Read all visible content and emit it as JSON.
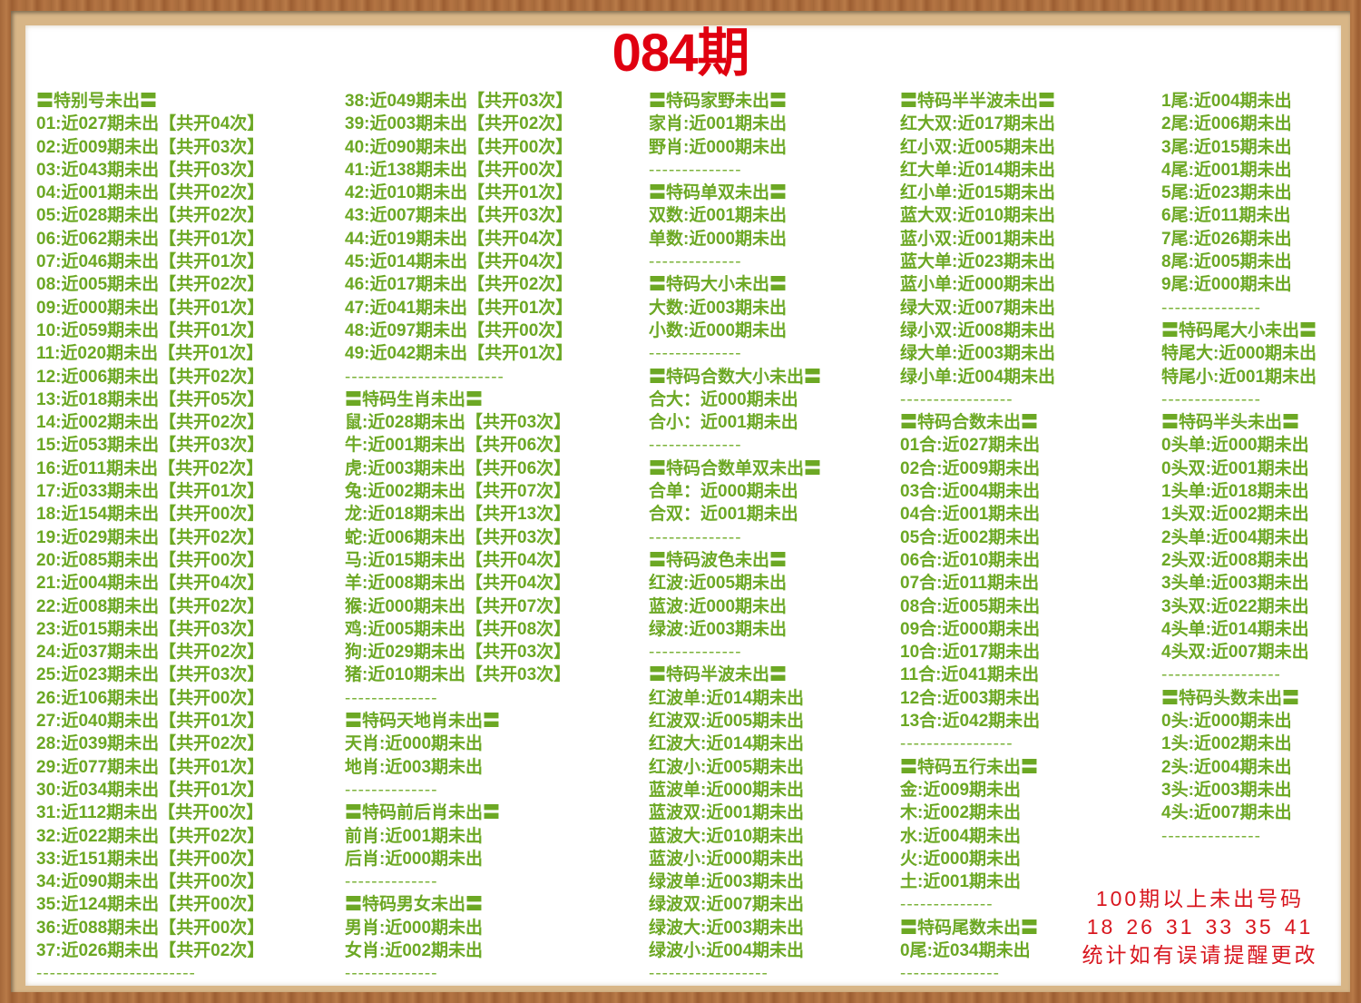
{
  "title": "084期",
  "accent_color": "#6ca824",
  "title_color": "#e00010",
  "columns": [
    [
      "〓特别号未出〓",
      "01:近027期未出【共开04次】",
      "02:近009期未出【共开03次】",
      "03:近043期未出【共开03次】",
      "04:近001期未出【共开02次】",
      "05:近028期未出【共开02次】",
      "06:近062期未出【共开01次】",
      "07:近046期未出【共开01次】",
      "08:近005期未出【共开02次】",
      "09:近000期未出【共开01次】",
      "10:近059期未出【共开01次】",
      "11:近020期未出【共开01次】",
      "12:近006期未出【共开02次】",
      "13:近018期未出【共开05次】",
      "14:近002期未出【共开02次】",
      "15:近053期未出【共开03次】",
      "16:近011期未出【共开02次】",
      "17:近033期未出【共开01次】",
      "18:近154期未出【共开00次】",
      "19:近029期未出【共开02次】",
      "20:近085期未出【共开00次】",
      "21:近004期未出【共开04次】",
      "22:近008期未出【共开02次】",
      "23:近015期未出【共开03次】",
      "24:近037期未出【共开02次】",
      "25:近023期未出【共开03次】",
      "26:近106期未出【共开00次】",
      "27:近040期未出【共开01次】",
      "28:近039期未出【共开02次】",
      "29:近077期未出【共开01次】",
      "30:近034期未出【共开01次】",
      "31:近112期未出【共开00次】",
      "32:近022期未出【共开02次】",
      "33:近151期未出【共开00次】",
      "34:近090期未出【共开00次】",
      "35:近124期未出【共开00次】",
      "36:近088期未出【共开00次】",
      "37:近026期未出【共开02次】",
      "------------------------"
    ],
    [
      "38:近049期未出【共开03次】",
      "39:近003期未出【共开02次】",
      "40:近090期未出【共开00次】",
      "41:近138期未出【共开00次】",
      "42:近010期未出【共开01次】",
      "43:近007期未出【共开03次】",
      "44:近019期未出【共开04次】",
      "45:近014期未出【共开04次】",
      "46:近017期未出【共开02次】",
      "47:近041期未出【共开01次】",
      "48:近097期未出【共开00次】",
      "49:近042期未出【共开01次】",
      "------------------------",
      "〓特码生肖未出〓",
      "鼠:近028期未出【共开03次】",
      "牛:近001期未出【共开06次】",
      "虎:近003期未出【共开06次】",
      "兔:近002期未出【共开07次】",
      "龙:近018期未出【共开13次】",
      "蛇:近006期未出【共开03次】",
      "马:近015期未出【共开04次】",
      "羊:近008期未出【共开04次】",
      "猴:近000期未出【共开07次】",
      "鸡:近005期未出【共开08次】",
      "狗:近029期未出【共开03次】",
      "猪:近010期未出【共开03次】",
      "--------------",
      "〓特码天地肖未出〓",
      "天肖:近000期未出",
      "地肖:近003期未出",
      "--------------",
      "〓特码前后肖未出〓",
      "前肖:近001期未出",
      "后肖:近000期未出",
      "--------------",
      "〓特码男女未出〓",
      "男肖:近000期未出",
      "女肖:近002期未出",
      "--------------"
    ],
    [
      "〓特码家野未出〓",
      "家肖:近001期未出",
      "野肖:近000期未出",
      "--------------",
      "〓特码单双未出〓",
      "双数:近001期未出",
      "单数:近000期未出",
      "--------------",
      "〓特码大小未出〓",
      "大数:近003期未出",
      "小数:近000期未出",
      "--------------",
      "〓特码合数大小未出〓",
      "合大：近000期未出",
      "合小：近001期未出",
      "--------------",
      "〓特码合数单双未出〓",
      "合单：近000期未出",
      "合双：近001期未出",
      "--------------",
      "〓特码波色未出〓",
      "红波:近005期未出",
      "蓝波:近000期未出",
      "绿波:近003期未出",
      "--------------",
      "〓特码半波未出〓",
      "红波单:近014期未出",
      "红波双:近005期未出",
      "红波大:近014期未出",
      "红波小:近005期未出",
      "蓝波单:近000期未出",
      "蓝波双:近001期未出",
      "蓝波大:近010期未出",
      "蓝波小:近000期未出",
      "绿波单:近003期未出",
      "绿波双:近007期未出",
      "绿波大:近003期未出",
      "绿波小:近004期未出",
      "------------------"
    ],
    [
      "〓特码半半波未出〓",
      "红大双:近017期未出",
      "红小双:近005期未出",
      "红大单:近014期未出",
      "红小单:近015期未出",
      "蓝大双:近010期未出",
      "蓝小双:近001期未出",
      "蓝大单:近023期未出",
      "蓝小单:近000期未出",
      "绿大双:近007期未出",
      "绿小双:近008期未出",
      "绿大单:近003期未出",
      "绿小单:近004期未出",
      "-----------------",
      "〓特码合数未出〓",
      "01合:近027期未出",
      "02合:近009期未出",
      "03合:近004期未出",
      "04合:近001期未出",
      "05合:近002期未出",
      "06合:近010期未出",
      "07合:近011期未出",
      "08合:近005期未出",
      "09合:近000期未出",
      "10合:近017期未出",
      "11合:近041期未出",
      "12合:近003期未出",
      "13合:近042期未出",
      "-----------------",
      "〓特码五行未出〓",
      "金:近009期未出",
      "木:近002期未出",
      "水:近004期未出",
      "火:近000期未出",
      "土:近001期未出",
      "--------------",
      "〓特码尾数未出〓",
      "0尾:近034期未出",
      "---------------"
    ],
    [
      "1尾:近004期未出",
      "2尾:近006期未出",
      "3尾:近015期未出",
      "4尾:近001期未出",
      "5尾:近023期未出",
      "6尾:近011期未出",
      "7尾:近026期未出",
      "8尾:近005期未出",
      "9尾:近000期未出",
      "---------------",
      "〓特码尾大小未出〓",
      "特尾大:近000期未出",
      "特尾小:近001期未出",
      "---------------",
      "〓特码半头未出〓",
      "0头单:近000期未出",
      "0头双:近001期未出",
      "1头单:近018期未出",
      "1头双:近002期未出",
      "2头单:近004期未出",
      "2头双:近008期未出",
      "3头单:近003期未出",
      "3头双:近022期未出",
      "4头单:近014期未出",
      "4头双:近007期未出",
      "------------------",
      "〓特码头数未出〓",
      "0头:近000期未出",
      "1头:近002期未出",
      "2头:近004期未出",
      "3头:近003期未出",
      "4头:近007期未出",
      "---------------"
    ]
  ],
  "note": {
    "line1": "100期以上未出号码",
    "numbers": [
      "18",
      "26",
      "31",
      "33",
      "35",
      "41"
    ],
    "line3": "统计如有误请提醒更改"
  }
}
